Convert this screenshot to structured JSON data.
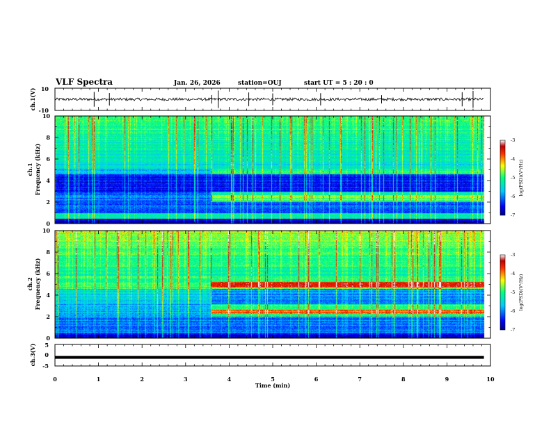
{
  "header": {
    "title": "VLF Spectra",
    "date": "Jan. 26, 2026",
    "station": "station=OUJ",
    "start_time": "start  UT =  5 : 20 : 0"
  },
  "chart_data": [
    {
      "type": "line",
      "panel": "ch1-waveform",
      "ylabel": "ch.1(V)",
      "ylim": [
        -10,
        10
      ],
      "yticks": [
        "10",
        "-10"
      ],
      "xlim": [
        0,
        10
      ],
      "series": [
        {
          "name": "ch.1",
          "baseline": 0,
          "noise_amplitude": 2.5,
          "spike_times": [
            0.9,
            1.25,
            3.6,
            3.75,
            4.45,
            5.0,
            6.1,
            7.5,
            9.35,
            9.6
          ]
        }
      ]
    },
    {
      "type": "heatmap",
      "panel": "ch1-spectrogram",
      "ylabel": "ch.1\nFrequency (kHz)",
      "ylabel_line1": "ch.1",
      "ylabel_line2": "Frequency (kHz)",
      "ylim": [
        0,
        10
      ],
      "yticks": [
        "0",
        "2",
        "4",
        "6",
        "8",
        "10"
      ],
      "xlim": [
        0,
        10
      ],
      "data_end_min": 9.85,
      "transition_min": 3.6,
      "bands_kHz": [
        0.7,
        2.4,
        4.9
      ],
      "colorbar": {
        "label": "log(PSD)(V²/Hz)",
        "range": [
          -7,
          -3
        ],
        "ticks": [
          "-3",
          "-4",
          "-5",
          "-6",
          "-7"
        ]
      }
    },
    {
      "type": "heatmap",
      "panel": "ch2-spectrogram",
      "ylabel": "ch.2\nFrequency (kHz)",
      "ylabel_line1": "ch.2",
      "ylabel_line2": "Frequency (kHz)",
      "ylim": [
        0,
        10
      ],
      "yticks": [
        "0",
        "2",
        "4",
        "6",
        "8",
        "10"
      ],
      "xlim": [
        0,
        10
      ],
      "data_end_min": 9.85,
      "transition_min": 3.6,
      "bands_kHz": [
        2.5,
        5.0
      ],
      "colorbar": {
        "label": "log(PSD)(V²/Hz)",
        "range": [
          -7,
          -3
        ],
        "ticks": [
          "-3",
          "-4",
          "-5",
          "-6",
          "-7"
        ]
      }
    },
    {
      "type": "line",
      "panel": "ch3-waveform",
      "ylabel": "ch.3(V)",
      "ylim": [
        -5,
        5
      ],
      "yticks": [
        "5",
        "0",
        "-5"
      ],
      "xlim": [
        0,
        10
      ],
      "series": [
        {
          "name": "ch.3",
          "value": -1.0
        }
      ]
    }
  ],
  "x_axis": {
    "label": "Time  (min)",
    "ticks": [
      "0",
      "1",
      "2",
      "3",
      "4",
      "5",
      "6",
      "7",
      "8",
      "9",
      "10"
    ]
  }
}
